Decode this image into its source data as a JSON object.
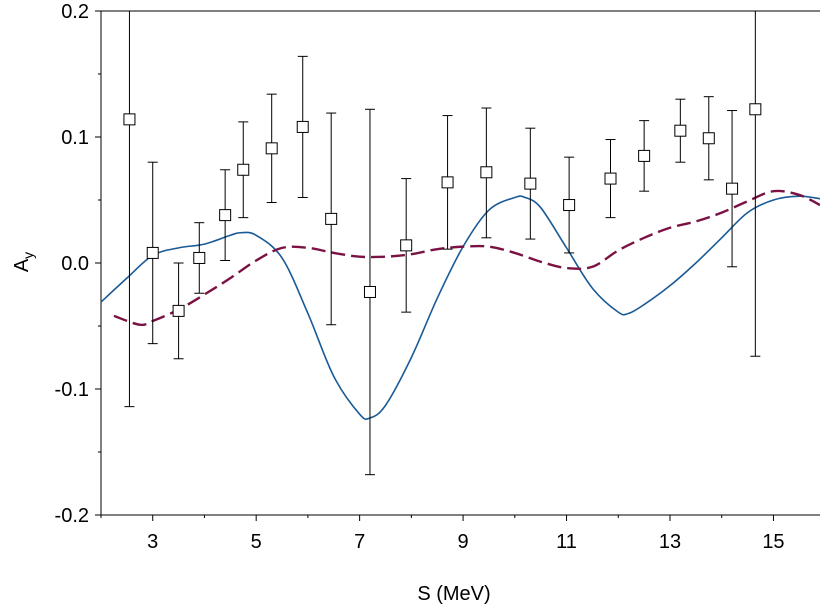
{
  "chart_data": {
    "type": "scatter",
    "xlabel": "S (MeV)",
    "ylabel": "A",
    "ylabel_subscript": "y",
    "xlim": [
      2.0,
      15.9
    ],
    "ylim": [
      -0.2,
      0.2
    ],
    "x_ticks": [
      3,
      5,
      7,
      9,
      11,
      13,
      15
    ],
    "y_ticks": [
      {
        "value": 0.2,
        "label": "0.2"
      },
      {
        "value": 0.1,
        "label": "0.1"
      },
      {
        "value": 0.0,
        "label": "0.0"
      },
      {
        "value": -0.1,
        "label": "-0.1"
      },
      {
        "value": -0.2,
        "label": "-0.2"
      }
    ],
    "grid": false,
    "series": [
      {
        "kind": "points-with-errorbars",
        "marker": "open-square",
        "color": "#000000",
        "points": [
          {
            "x": 2.55,
            "y": 0.114,
            "lo": -0.114,
            "hi": 0.2
          },
          {
            "x": 3.0,
            "y": 0.008,
            "lo": -0.064,
            "hi": 0.08
          },
          {
            "x": 3.5,
            "y": -0.038,
            "lo": -0.076,
            "hi": 0.0
          },
          {
            "x": 3.9,
            "y": 0.004,
            "lo": -0.024,
            "hi": 0.032
          },
          {
            "x": 4.4,
            "y": 0.038,
            "lo": 0.002,
            "hi": 0.074
          },
          {
            "x": 4.75,
            "y": 0.074,
            "lo": 0.036,
            "hi": 0.112
          },
          {
            "x": 5.3,
            "y": 0.091,
            "lo": 0.048,
            "hi": 0.134
          },
          {
            "x": 5.9,
            "y": 0.108,
            "lo": 0.052,
            "hi": 0.164
          },
          {
            "x": 6.45,
            "y": 0.035,
            "lo": -0.049,
            "hi": 0.119
          },
          {
            "x": 7.2,
            "y": -0.023,
            "lo": -0.168,
            "hi": 0.122
          },
          {
            "x": 7.9,
            "y": 0.014,
            "lo": -0.039,
            "hi": 0.067
          },
          {
            "x": 8.7,
            "y": 0.064,
            "lo": 0.011,
            "hi": 0.117
          },
          {
            "x": 9.45,
            "y": 0.072,
            "lo": 0.02,
            "hi": 0.123
          },
          {
            "x": 10.3,
            "y": 0.063,
            "lo": 0.019,
            "hi": 0.107
          },
          {
            "x": 11.05,
            "y": 0.046,
            "lo": 0.008,
            "hi": 0.084
          },
          {
            "x": 11.85,
            "y": 0.067,
            "lo": 0.036,
            "hi": 0.098
          },
          {
            "x": 12.5,
            "y": 0.085,
            "lo": 0.057,
            "hi": 0.113
          },
          {
            "x": 13.2,
            "y": 0.105,
            "lo": 0.08,
            "hi": 0.13
          },
          {
            "x": 13.75,
            "y": 0.099,
            "lo": 0.066,
            "hi": 0.132
          },
          {
            "x": 14.2,
            "y": 0.059,
            "lo": -0.003,
            "hi": 0.121
          },
          {
            "x": 14.65,
            "y": 0.122,
            "lo": -0.074,
            "hi": 0.2
          }
        ]
      },
      {
        "kind": "line",
        "style": "solid",
        "color": "#1a5a96",
        "x": [
          2.0,
          2.5,
          3.0,
          3.5,
          4.0,
          4.5,
          4.7,
          5.0,
          5.5,
          6.0,
          6.5,
          7.0,
          7.2,
          7.5,
          8.0,
          8.5,
          9.0,
          9.5,
          10.0,
          10.2,
          10.5,
          11.0,
          11.5,
          12.0,
          12.2,
          12.5,
          13.0,
          13.5,
          14.0,
          14.5,
          15.0,
          15.5,
          15.9
        ],
        "y": [
          -0.031,
          -0.012,
          0.006,
          0.012,
          0.015,
          0.022,
          0.024,
          0.022,
          0.004,
          -0.04,
          -0.09,
          -0.12,
          -0.123,
          -0.113,
          -0.075,
          -0.028,
          0.013,
          0.042,
          0.052,
          0.052,
          0.044,
          0.012,
          -0.02,
          -0.039,
          -0.04,
          -0.033,
          -0.018,
          0.0,
          0.02,
          0.04,
          0.05,
          0.053,
          0.051
        ]
      },
      {
        "kind": "line",
        "style": "dashed",
        "color": "#7a1244",
        "x": [
          2.25,
          2.75,
          3.0,
          3.5,
          4.0,
          4.5,
          5.0,
          5.5,
          6.0,
          6.5,
          7.0,
          7.5,
          8.0,
          8.5,
          9.0,
          9.5,
          10.0,
          10.5,
          11.0,
          11.5,
          12.0,
          12.5,
          13.0,
          13.5,
          14.0,
          14.5,
          15.0,
          15.5,
          15.9
        ],
        "y": [
          -0.042,
          -0.049,
          -0.046,
          -0.037,
          -0.025,
          -0.012,
          0.002,
          0.012,
          0.012,
          0.008,
          0.005,
          0.005,
          0.007,
          0.011,
          0.013,
          0.013,
          0.008,
          0.001,
          -0.004,
          -0.003,
          0.01,
          0.02,
          0.028,
          0.033,
          0.04,
          0.049,
          0.057,
          0.054,
          0.046
        ]
      }
    ]
  }
}
